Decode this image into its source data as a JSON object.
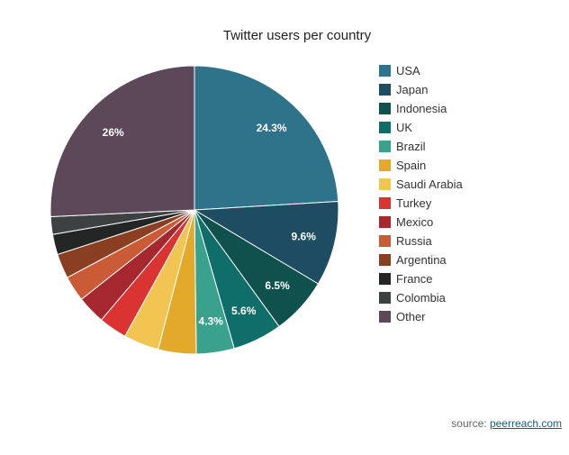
{
  "chart_data": {
    "type": "pie",
    "title": "Twitter users per country",
    "series": [
      {
        "name": "USA",
        "value": 24.3,
        "label": "24.3%",
        "color": "#2e7389"
      },
      {
        "name": "Japan",
        "value": 9.6,
        "label": "9.6%",
        "color": "#1d4c63"
      },
      {
        "name": "Indonesia",
        "value": 6.5,
        "label": "6.5%",
        "color": "#0f514d"
      },
      {
        "name": "UK",
        "value": 5.6,
        "label": "5.6%",
        "color": "#0f6d6a"
      },
      {
        "name": "Brazil",
        "value": 4.3,
        "label": "4.3%",
        "color": "#3aa18d"
      },
      {
        "name": "Spain",
        "value": 4.3,
        "label": "",
        "color": "#e2a92b"
      },
      {
        "name": "Saudi Arabia",
        "value": 4.0,
        "label": "",
        "color": "#f2c451"
      },
      {
        "name": "Turkey",
        "value": 3.2,
        "label": "",
        "color": "#db3232"
      },
      {
        "name": "Mexico",
        "value": 3.2,
        "label": "",
        "color": "#a6282e"
      },
      {
        "name": "Russia",
        "value": 2.9,
        "label": "",
        "color": "#cb5a36"
      },
      {
        "name": "Argentina",
        "value": 2.8,
        "label": "",
        "color": "#8b3f22"
      },
      {
        "name": "France",
        "value": 2.3,
        "label": "",
        "color": "#232625"
      },
      {
        "name": "Colombia",
        "value": 2.0,
        "label": "",
        "color": "#3e4141"
      },
      {
        "name": "Other",
        "value": 26.0,
        "label": "26%",
        "color": "#5d4859"
      }
    ],
    "legend_position": "right",
    "start_angle": "12 o'clock, clockwise"
  },
  "source": {
    "prefix": "source: ",
    "link_text": "peerreach.com"
  }
}
